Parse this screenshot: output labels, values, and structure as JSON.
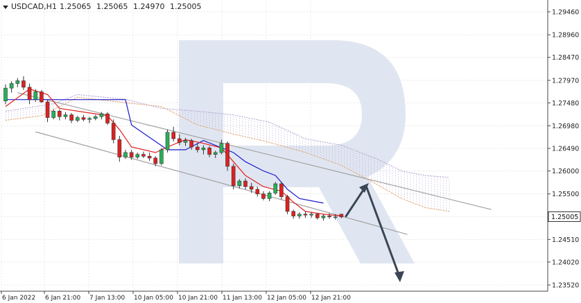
{
  "header": {
    "symbol": "USDCAD,H1",
    "open": "1.25065",
    "high": "1.25065",
    "low": "1.24970",
    "close": "1.25005"
  },
  "price_axis": {
    "ticks": [
      "1.29460",
      "1.28960",
      "1.28470",
      "1.27970",
      "1.27480",
      "1.26980",
      "1.26490",
      "1.26000",
      "1.25500",
      "1.25005",
      "1.24510",
      "1.24020",
      "1.23520"
    ],
    "current_price": "1.25005",
    "current_badge_color": "#ffffff"
  },
  "time_axis": {
    "ticks": [
      "6 Jan 2022",
      "6 Jan 21:00",
      "7 Jan 13:00",
      "10 Jan 05:00",
      "10 Jan 21:00",
      "11 Jan 13:00",
      "12 Jan 05:00",
      "12 Jan 21:00"
    ]
  },
  "colors": {
    "bull": "#27b15a",
    "bear": "#e02020",
    "tenkan": "#e02020",
    "kijun": "#1a1acc",
    "span_a": "#e8a060",
    "span_b": "#b0a0d0",
    "channel": "#a0a0a0",
    "arrow": "#3a4656",
    "watermark": "#dbe2ee",
    "grid": "#e8e8e8"
  },
  "chart_data": {
    "type": "candlestick",
    "ylim": [
      1.2352,
      1.2996
    ],
    "candles": [
      [
        1.2752,
        1.2788,
        1.2745,
        1.278
      ],
      [
        1.278,
        1.2795,
        1.277,
        1.279
      ],
      [
        1.279,
        1.2802,
        1.2782,
        1.2796
      ],
      [
        1.2796,
        1.2806,
        1.2776,
        1.2782
      ],
      [
        1.2782,
        1.279,
        1.2745,
        1.2755
      ],
      [
        1.2755,
        1.2778,
        1.275,
        1.2772
      ],
      [
        1.2772,
        1.2776,
        1.2748,
        1.275
      ],
      [
        1.275,
        1.2754,
        1.2706,
        1.2716
      ],
      [
        1.2716,
        1.2734,
        1.2712,
        1.273
      ],
      [
        1.273,
        1.2734,
        1.271,
        1.2718
      ],
      [
        1.2718,
        1.2728,
        1.2712,
        1.2722
      ],
      [
        1.2722,
        1.2726,
        1.2704,
        1.271
      ],
      [
        1.271,
        1.272,
        1.2706,
        1.2716
      ],
      [
        1.2716,
        1.2722,
        1.2708,
        1.2712
      ],
      [
        1.2712,
        1.2718,
        1.2704,
        1.2714
      ],
      [
        1.2714,
        1.2722,
        1.271,
        1.2718
      ],
      [
        1.2718,
        1.2728,
        1.2712,
        1.2724
      ],
      [
        1.2724,
        1.2728,
        1.27,
        1.2704
      ],
      [
        1.2704,
        1.2712,
        1.266,
        1.2668
      ],
      [
        1.2668,
        1.2676,
        1.262,
        1.263
      ],
      [
        1.263,
        1.2646,
        1.2626,
        1.264
      ],
      [
        1.264,
        1.2646,
        1.2624,
        1.263
      ],
      [
        1.263,
        1.264,
        1.2626,
        1.2636
      ],
      [
        1.2636,
        1.2642,
        1.2628,
        1.2632
      ],
      [
        1.2632,
        1.264,
        1.2622,
        1.2628
      ],
      [
        1.2628,
        1.2632,
        1.261,
        1.2616
      ],
      [
        1.2616,
        1.265,
        1.2612,
        1.2646
      ],
      [
        1.2646,
        1.269,
        1.264,
        1.2684
      ],
      [
        1.2684,
        1.2696,
        1.2664,
        1.267
      ],
      [
        1.267,
        1.268,
        1.2656,
        1.2662
      ],
      [
        1.2662,
        1.2672,
        1.2654,
        1.2666
      ],
      [
        1.2666,
        1.267,
        1.2646,
        1.2652
      ],
      [
        1.2652,
        1.266,
        1.264,
        1.2646
      ],
      [
        1.2646,
        1.2656,
        1.2636,
        1.265
      ],
      [
        1.265,
        1.2654,
        1.263,
        1.2636
      ],
      [
        1.2636,
        1.2644,
        1.2628,
        1.264
      ],
      [
        1.264,
        1.2668,
        1.2636,
        1.266
      ],
      [
        1.266,
        1.2664,
        1.26,
        1.261
      ],
      [
        1.261,
        1.2616,
        1.256,
        1.2568
      ],
      [
        1.2568,
        1.2582,
        1.2562,
        1.2578
      ],
      [
        1.2578,
        1.2584,
        1.256,
        1.2566
      ],
      [
        1.2566,
        1.2574,
        1.2552,
        1.256
      ],
      [
        1.256,
        1.2566,
        1.2544,
        1.255
      ],
      [
        1.255,
        1.2556,
        1.2536,
        1.254
      ],
      [
        1.254,
        1.2556,
        1.2534,
        1.2552
      ],
      [
        1.2552,
        1.2576,
        1.2548,
        1.2572
      ],
      [
        1.2572,
        1.2576,
        1.2538,
        1.2544
      ],
      [
        1.2544,
        1.2548,
        1.2506,
        1.2512
      ],
      [
        1.2512,
        1.2516,
        1.2496,
        1.2502
      ],
      [
        1.2502,
        1.251,
        1.2496,
        1.2506
      ],
      [
        1.2506,
        1.2512,
        1.2498,
        1.2504
      ],
      [
        1.2504,
        1.251,
        1.2498,
        1.2506
      ],
      [
        1.2506,
        1.2508,
        1.2494,
        1.2498
      ],
      [
        1.2498,
        1.2506,
        1.2492,
        1.2502
      ],
      [
        1.2502,
        1.2508,
        1.2496,
        1.25
      ],
      [
        1.25,
        1.2506,
        1.2494,
        1.25
      ],
      [
        1.2506,
        1.2506,
        1.2497,
        1.25
      ]
    ],
    "tenkan": [
      [
        0,
        1.274
      ],
      [
        4,
        1.2778
      ],
      [
        7,
        1.2766
      ],
      [
        9,
        1.2736
      ],
      [
        14,
        1.2726
      ],
      [
        17,
        1.272
      ],
      [
        19,
        1.269
      ],
      [
        21,
        1.2652
      ],
      [
        25,
        1.264
      ],
      [
        27,
        1.2652
      ],
      [
        30,
        1.2668
      ],
      [
        33,
        1.266
      ],
      [
        36,
        1.265
      ],
      [
        38,
        1.262
      ],
      [
        40,
        1.259
      ],
      [
        43,
        1.2566
      ],
      [
        46,
        1.2556
      ],
      [
        48,
        1.2532
      ],
      [
        50,
        1.2512
      ],
      [
        53,
        1.2506
      ],
      [
        56,
        1.2502
      ]
    ],
    "kijun": [
      [
        0,
        1.2755
      ],
      [
        6,
        1.2755
      ],
      [
        20,
        1.2755
      ],
      [
        21,
        1.27
      ],
      [
        27,
        1.2646
      ],
      [
        30,
        1.2646
      ],
      [
        33,
        1.2666
      ],
      [
        38,
        1.264
      ],
      [
        40,
        1.262
      ],
      [
        43,
        1.26
      ],
      [
        45,
        1.259
      ],
      [
        47,
        1.256
      ],
      [
        49,
        1.254
      ],
      [
        53,
        1.253
      ]
    ],
    "span_a": [
      [
        0,
        1.271
      ],
      [
        6,
        1.272
      ],
      [
        12,
        1.276
      ],
      [
        20,
        1.2748
      ],
      [
        26,
        1.274
      ],
      [
        32,
        1.27
      ],
      [
        38,
        1.268
      ],
      [
        44,
        1.2662
      ],
      [
        50,
        1.264
      ],
      [
        56,
        1.2612
      ],
      [
        62,
        1.257
      ],
      [
        66,
        1.254
      ],
      [
        70,
        1.252
      ],
      [
        74,
        1.2512
      ]
    ],
    "span_b": [
      [
        0,
        1.273
      ],
      [
        8,
        1.2746
      ],
      [
        12,
        1.2766
      ],
      [
        20,
        1.2756
      ],
      [
        26,
        1.2736
      ],
      [
        32,
        1.273
      ],
      [
        38,
        1.2722
      ],
      [
        44,
        1.2706
      ],
      [
        50,
        1.267
      ],
      [
        56,
        1.2656
      ],
      [
        62,
        1.2626
      ],
      [
        66,
        1.26
      ],
      [
        70,
        1.259
      ],
      [
        74,
        1.2586
      ]
    ],
    "channel_lines": [
      {
        "from": [
          2,
          1.277
        ],
        "to": [
          81,
          1.2516
        ]
      },
      {
        "from": [
          5,
          1.2685
        ],
        "to": [
          67,
          1.2462
        ]
      }
    ],
    "forecast_path": [
      [
        56,
        1.25
      ],
      [
        60,
        1.2562
      ],
      [
        66,
        1.2386
      ]
    ]
  }
}
